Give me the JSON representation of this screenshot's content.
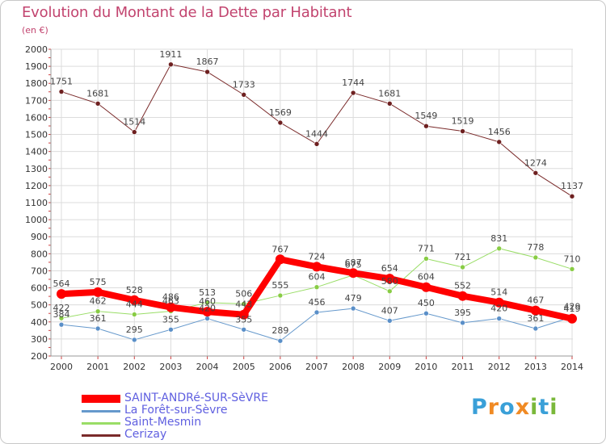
{
  "header": {
    "title": "Evolution du Montant de la Dette par Habitant",
    "subtitle": "(en €)"
  },
  "logo": {
    "letters": [
      "P",
      "r",
      "o",
      "x",
      "i",
      "t",
      "i"
    ],
    "colors": [
      "#3aa0d8",
      "#f08a24",
      "#3aa0d8",
      "#f08a24",
      "#7ab83a",
      "#3aa0d8",
      "#7ab83a"
    ]
  },
  "chart_data": {
    "type": "line",
    "title": "Evolution du Montant de la Dette par Habitant",
    "subtitle": "(en €)",
    "xlabel": "",
    "ylabel": "",
    "x": [
      "2000",
      "2001",
      "2002",
      "2003",
      "2004",
      "2005",
      "2006",
      "2007",
      "2008",
      "2009",
      "2010",
      "2011",
      "2012",
      "2013",
      "2014"
    ],
    "ylim": [
      200,
      2000
    ],
    "yticks": [
      200,
      300,
      400,
      500,
      600,
      700,
      800,
      900,
      1000,
      1100,
      1200,
      1300,
      1400,
      1500,
      1600,
      1700,
      1800,
      1900,
      2000
    ],
    "grid": true,
    "legend_position": "bottom-left",
    "series": [
      {
        "name": "SAINT-ANDRé-SUR-SèVRE",
        "color": "#ff0000",
        "marker_color": "#ff0000",
        "width": 8,
        "values": [
          564,
          575,
          528,
          486,
          460,
          443,
          767,
          724,
          687,
          654,
          604,
          552,
          514,
          467,
          419
        ]
      },
      {
        "name": "La Forêt-sur-Sèvre",
        "color": "#6699cc",
        "marker_color": "#5a8fc8",
        "width": 1,
        "values": [
          384,
          361,
          295,
          355,
          420,
          355,
          289,
          456,
          479,
          407,
          450,
          395,
          420,
          361,
          429
        ]
      },
      {
        "name": "Saint-Mesmin",
        "color": "#99dd66",
        "marker_color": "#88cc44",
        "width": 1,
        "values": [
          422,
          462,
          444,
          463,
          513,
          506,
          555,
          604,
          675,
          580,
          771,
          721,
          831,
          778,
          710
        ]
      },
      {
        "name": "Cerizay",
        "color": "#7a2a2a",
        "marker_color": "#6e2020",
        "width": 1,
        "values": [
          1751,
          1681,
          1514,
          1911,
          1867,
          1733,
          1569,
          1444,
          1744,
          1681,
          1549,
          1519,
          1456,
          1274,
          1137
        ]
      }
    ]
  }
}
